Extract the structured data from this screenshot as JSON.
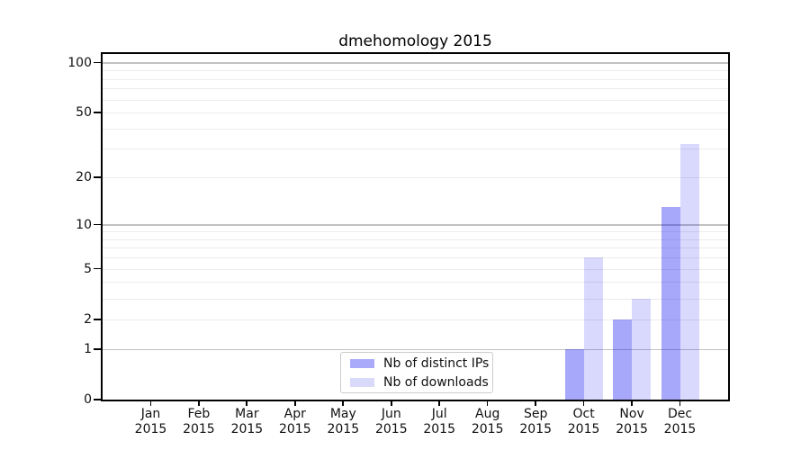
{
  "title": "dmehomology 2015",
  "chart_data": {
    "type": "bar",
    "title": "dmehomology 2015",
    "x_categories": [
      "Jan",
      "Feb",
      "Mar",
      "Apr",
      "May",
      "Jun",
      "Jul",
      "Aug",
      "Sep",
      "Oct",
      "Nov",
      "Dec"
    ],
    "x_year": "2015",
    "series": [
      {
        "name": "Nb of distinct IPs",
        "color": "#aaaafa",
        "color_rgba": "rgba(0,0,240,0.34)",
        "values": [
          0,
          0,
          0,
          0,
          0,
          0,
          0,
          0,
          0,
          1,
          2,
          13
        ]
      },
      {
        "name": "Nb of downloads",
        "color": "#d9d9fa",
        "color_rgba": "rgba(0,0,240,0.15)",
        "values": [
          0,
          0,
          0,
          0,
          0,
          0,
          0,
          0,
          0,
          6,
          3,
          32
        ]
      }
    ],
    "y_scale": "log1p",
    "ylim": [
      0,
      110
    ],
    "y_ticks_labeled": [
      0,
      1,
      2,
      5,
      10,
      20,
      50,
      100
    ],
    "y_gridlines_major": [
      1,
      10,
      100
    ],
    "y_gridlines_minor": [
      2,
      3,
      4,
      5,
      6,
      7,
      8,
      9,
      20,
      30,
      40,
      50,
      60,
      70,
      80,
      90
    ],
    "grid": true,
    "legend_position": "lower-center",
    "colors": {
      "major_grid": "#c2c2c2",
      "minor_grid": "#ececec",
      "spine": "#000000",
      "background": "#ffffff"
    }
  }
}
